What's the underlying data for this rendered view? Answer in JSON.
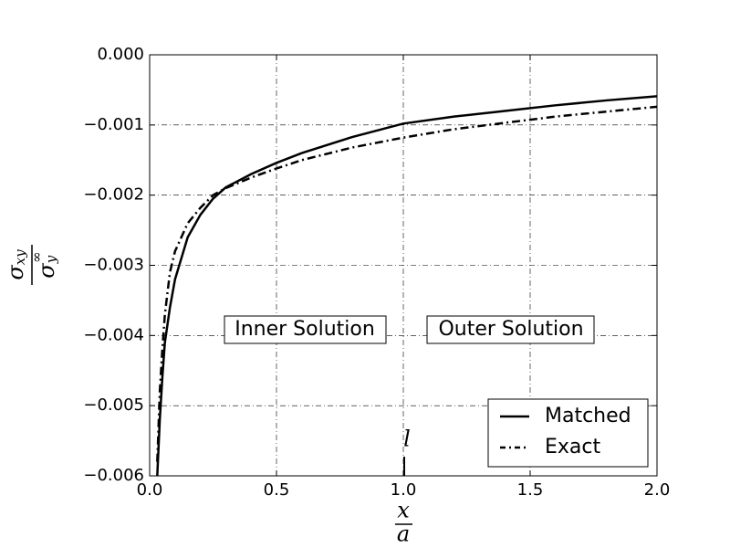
{
  "chart_data": {
    "type": "line",
    "xlabel": {
      "numerator": "x",
      "denominator": "a"
    },
    "ylabel": {
      "numerator": {
        "base": "σ",
        "sub": "xy"
      },
      "denominator": {
        "base": "σ",
        "sub": "y",
        "sup": "∞"
      }
    },
    "x": [
      0.03,
      0.04,
      0.05,
      0.06,
      0.08,
      0.1,
      0.15,
      0.2,
      0.25,
      0.3,
      0.4,
      0.5,
      0.6,
      0.8,
      1.0,
      1.2,
      1.4,
      1.6,
      1.8,
      2.0
    ],
    "series": [
      {
        "name": "Matched",
        "color": "#000000",
        "dash": "solid",
        "values": [
          -0.006,
          -0.0052,
          -0.0046,
          -0.0041,
          -0.0036,
          -0.0032,
          -0.0026,
          -0.00228,
          -0.00205,
          -0.00189,
          -0.0017,
          -0.00154,
          -0.0014,
          -0.00117,
          -0.00098,
          -0.00088,
          -0.0008,
          -0.00072,
          -0.00065,
          -0.00059
        ]
      },
      {
        "name": "Exact",
        "color": "#000000",
        "dash": "dashdot",
        "values": [
          -0.0058,
          -0.0048,
          -0.0042,
          -0.0037,
          -0.0031,
          -0.0028,
          -0.0024,
          -0.00218,
          -0.002,
          -0.0019,
          -0.00175,
          -0.00162,
          -0.0015,
          -0.00132,
          -0.00118,
          -0.00106,
          -0.00097,
          -0.00088,
          -0.00081,
          -0.00074
        ]
      }
    ],
    "xlim": [
      0,
      2
    ],
    "ylim": [
      -0.006,
      0
    ],
    "xticks": [
      {
        "value": 0,
        "label": "0.0"
      },
      {
        "value": 0.5,
        "label": "0.5"
      },
      {
        "value": 1,
        "label": "1.0"
      },
      {
        "value": 1.5,
        "label": "1.5"
      },
      {
        "value": 2,
        "label": "2.0"
      }
    ],
    "yticks": [
      {
        "value": -0.006,
        "label": "−0.006"
      },
      {
        "value": -0.005,
        "label": "−0.005"
      },
      {
        "value": -0.004,
        "label": "−0.004"
      },
      {
        "value": -0.003,
        "label": "−0.003"
      },
      {
        "value": -0.002,
        "label": "−0.002"
      },
      {
        "value": -0.001,
        "label": "−0.001"
      },
      {
        "value": 0,
        "label": "0.000"
      }
    ],
    "grid": true,
    "legend": "lower right",
    "annotations": [
      "Inner Solution",
      "Outer Solution",
      "l"
    ]
  }
}
